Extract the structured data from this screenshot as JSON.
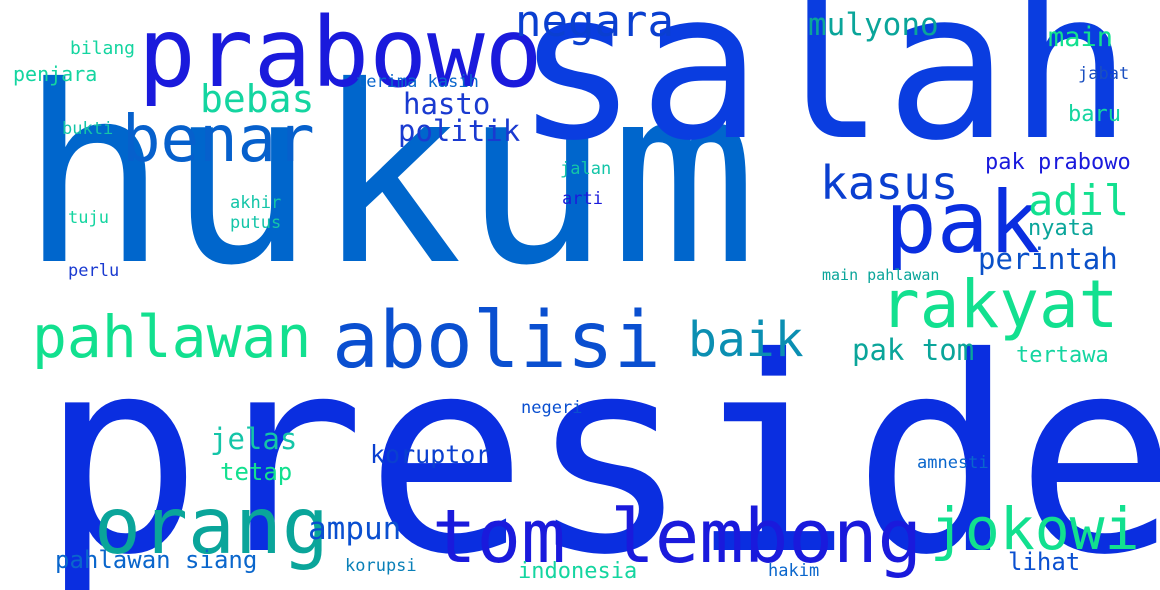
{
  "colors": {
    "background": "#ffffff",
    "palette": [
      "#0a2ee0",
      "#0066cc",
      "#0aa59a",
      "#12e08f",
      "#1a1adc",
      "#0b8fb2"
    ]
  },
  "words": [
    {
      "text": "presiden",
      "color": "#0a2ee0"
    },
    {
      "text": "hukum",
      "color": "#0066cc"
    },
    {
      "text": "salah",
      "color": "#0a3de0"
    },
    {
      "text": "prabowo",
      "color": "#1a1adc"
    },
    {
      "text": "benar",
      "color": "#0660cc"
    },
    {
      "text": "pak",
      "color": "#0a2ee0"
    },
    {
      "text": "abolisi",
      "color": "#0a4fd0"
    },
    {
      "text": "orang",
      "color": "#0aa59a"
    },
    {
      "text": "tom lembong",
      "color": "#1a1adc"
    },
    {
      "text": "rakyat",
      "color": "#12e08f"
    },
    {
      "text": "pahlawan",
      "color": "#12e08f"
    },
    {
      "text": "jokowi",
      "color": "#12e08f"
    },
    {
      "text": "kasus",
      "color": "#0a3fd0"
    },
    {
      "text": "negara",
      "color": "#0a3fd0"
    },
    {
      "text": "baik",
      "color": "#0b8fb2"
    },
    {
      "text": "bebas",
      "color": "#14d5a0"
    },
    {
      "text": "adil",
      "color": "#12e08f"
    },
    {
      "text": "mulyono",
      "color": "#0aa59a"
    },
    {
      "text": "hasto",
      "color": "#1a3ad0"
    },
    {
      "text": "politik",
      "color": "#1a3ad0"
    },
    {
      "text": "perintah",
      "color": "#0a50c8"
    },
    {
      "text": "ampun",
      "color": "#0a4fd0"
    },
    {
      "text": "pak tom",
      "color": "#0aa59a"
    },
    {
      "text": "jelas",
      "color": "#14c5a8"
    },
    {
      "text": "main",
      "color": "#12e08f"
    },
    {
      "text": "koruptor",
      "color": "#0a3fd0"
    },
    {
      "text": "pak prabowo",
      "color": "#1a1adc"
    },
    {
      "text": "pahlawan siang",
      "color": "#0a66cc"
    },
    {
      "text": "tertawa",
      "color": "#14d5a0"
    },
    {
      "text": "indonesia",
      "color": "#14d5a0"
    },
    {
      "text": "tetap",
      "color": "#12e08f"
    },
    {
      "text": "lihat",
      "color": "#0a4fd0"
    },
    {
      "text": "baru",
      "color": "#14d5a0"
    },
    {
      "text": "nyata",
      "color": "#0aa59a"
    },
    {
      "text": "penjara",
      "color": "#14d5a0"
    },
    {
      "text": "bilang",
      "color": "#14d5a0"
    },
    {
      "text": "terima kasih",
      "color": "#0a66cc"
    },
    {
      "text": "jabat",
      "color": "#1a4fc0"
    },
    {
      "text": "bukti",
      "color": "#14c5a8"
    },
    {
      "text": "jalan",
      "color": "#14c5a8"
    },
    {
      "text": "arti",
      "color": "#1a1adc"
    },
    {
      "text": "akhir",
      "color": "#14c5a8"
    },
    {
      "text": "putus",
      "color": "#14c5a8"
    },
    {
      "text": "tuju",
      "color": "#14d5a0"
    },
    {
      "text": "perlu",
      "color": "#1a3ad0"
    },
    {
      "text": "main pahlawan",
      "color": "#0aa59a"
    },
    {
      "text": "negeri",
      "color": "#0a4fd0"
    },
    {
      "text": "amnesti",
      "color": "#0a66cc"
    },
    {
      "text": "korupsi",
      "color": "#0a80b8"
    },
    {
      "text": "hakim",
      "color": "#0a66cc"
    }
  ]
}
